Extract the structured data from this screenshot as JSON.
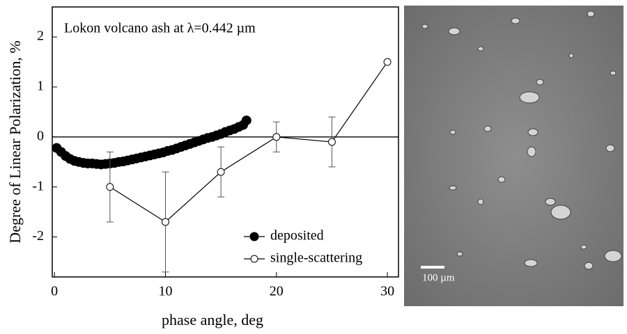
{
  "chart_data": {
    "type": "line",
    "annotation": "Lokon volcano ash at λ=0.442 µm",
    "xlabel": "phase angle, deg",
    "ylabel": "Degree of Linear Polarization, %",
    "xlim": [
      -0.2,
      31
    ],
    "ylim": [
      -2.8,
      2.6
    ],
    "xticks": [
      0,
      10,
      20,
      30
    ],
    "yticks": [
      -2,
      -1,
      0,
      1,
      2
    ],
    "reference_line": 0,
    "legend": "lower right",
    "series": [
      {
        "name": "deposited",
        "color": "#000000",
        "marker": "filled",
        "x": [
          0.2,
          0.6,
          1.0,
          1.4,
          1.8,
          2.2,
          2.6,
          3.0,
          3.4,
          3.8,
          4.2,
          4.6,
          5.0,
          5.4,
          5.8,
          6.2,
          6.6,
          7.0,
          7.4,
          7.8,
          8.2,
          8.6,
          9.0,
          9.4,
          9.8,
          10.2,
          10.6,
          11.0,
          11.4,
          11.8,
          12.2,
          12.6,
          13.0,
          13.4,
          13.8,
          14.2,
          14.6,
          15.0,
          15.4,
          15.8,
          16.2,
          16.6,
          17.0,
          17.3
        ],
        "values": [
          -0.22,
          -0.3,
          -0.38,
          -0.44,
          -0.48,
          -0.5,
          -0.52,
          -0.53,
          -0.53,
          -0.54,
          -0.55,
          -0.54,
          -0.53,
          -0.52,
          -0.5,
          -0.49,
          -0.47,
          -0.45,
          -0.43,
          -0.41,
          -0.39,
          -0.37,
          -0.35,
          -0.33,
          -0.31,
          -0.28,
          -0.26,
          -0.23,
          -0.2,
          -0.17,
          -0.14,
          -0.11,
          -0.08,
          -0.05,
          -0.02,
          0.0,
          0.03,
          0.06,
          0.1,
          0.13,
          0.16,
          0.2,
          0.24,
          0.33
        ]
      },
      {
        "name": "single-scattering",
        "color": "#000000",
        "marker": "open",
        "x": [
          5,
          10,
          15,
          20,
          25,
          30
        ],
        "values": [
          -1.0,
          -1.7,
          -0.7,
          0.0,
          -0.1,
          1.5
        ],
        "errors": [
          0.7,
          1.0,
          0.5,
          0.3,
          0.5,
          null
        ]
      }
    ]
  },
  "micrograph": {
    "scale_label": "100 µm"
  }
}
